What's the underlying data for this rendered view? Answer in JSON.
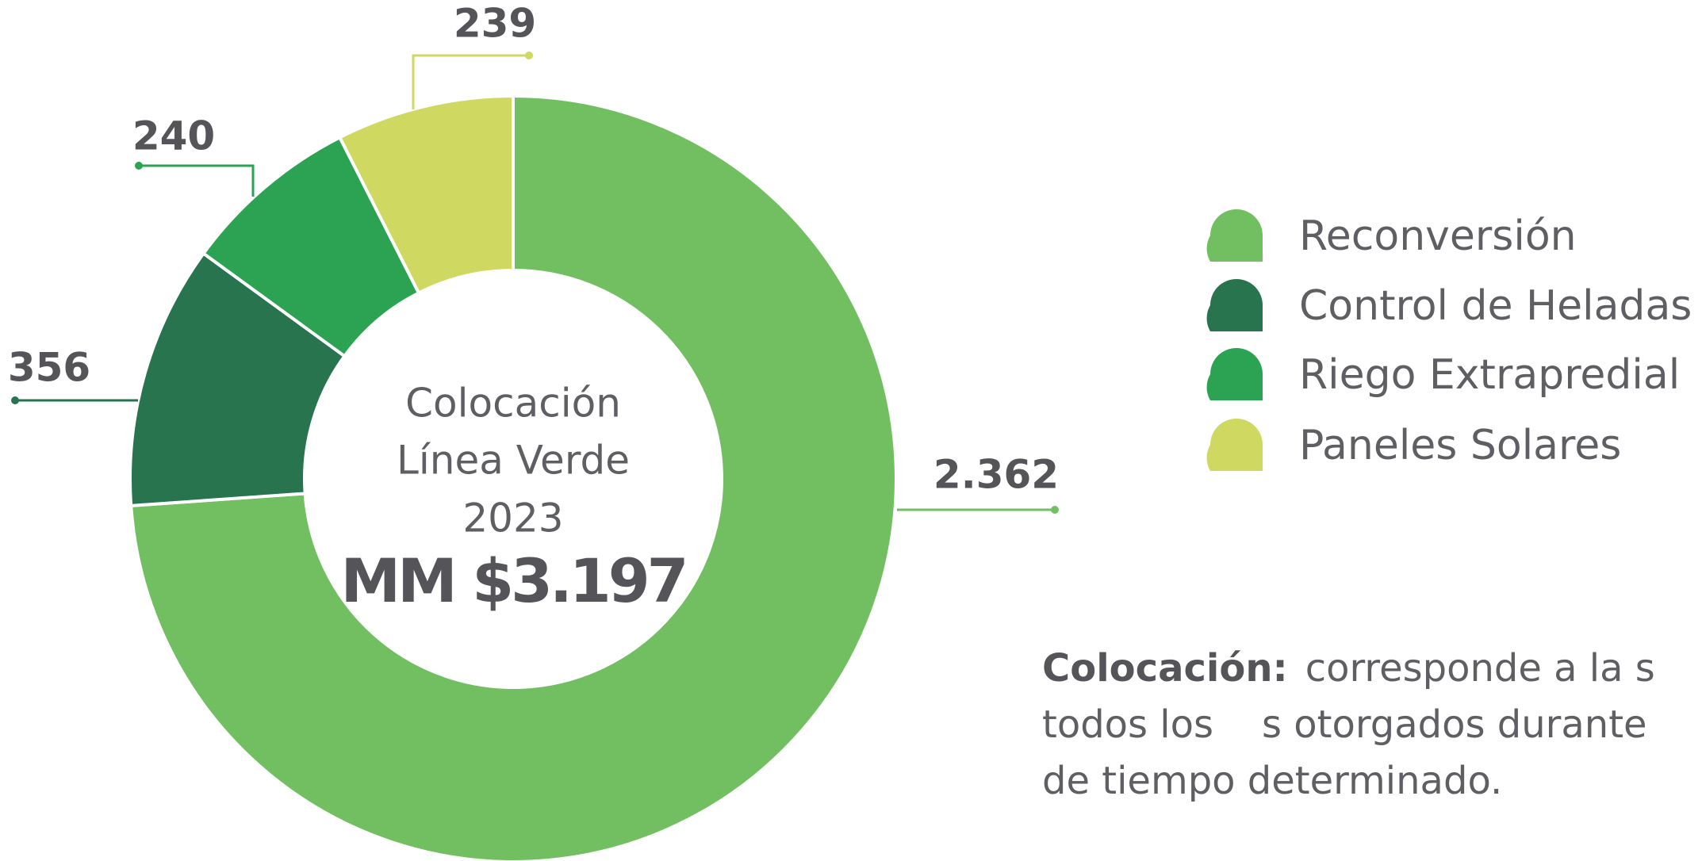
{
  "chart_data": {
    "type": "donut",
    "categories": [
      "Reconversión",
      "Control de Heladas",
      "Riego Extrapredial",
      "Paneles Solares"
    ],
    "values": [
      2362,
      356,
      240,
      239
    ],
    "value_labels": [
      "2.362",
      "356",
      "240",
      "239"
    ],
    "colors": [
      "#72bf62",
      "#27744f",
      "#2ba352",
      "#cfd962"
    ],
    "center_text": [
      "Colocación",
      "Línea Verde",
      "2023"
    ],
    "center_total": "MM $3.197"
  },
  "note": {
    "term": "Colocación:",
    "lines": [
      "corresponde a la s",
      "todos los    s otorgados durante",
      "de tiempo determinado."
    ]
  }
}
